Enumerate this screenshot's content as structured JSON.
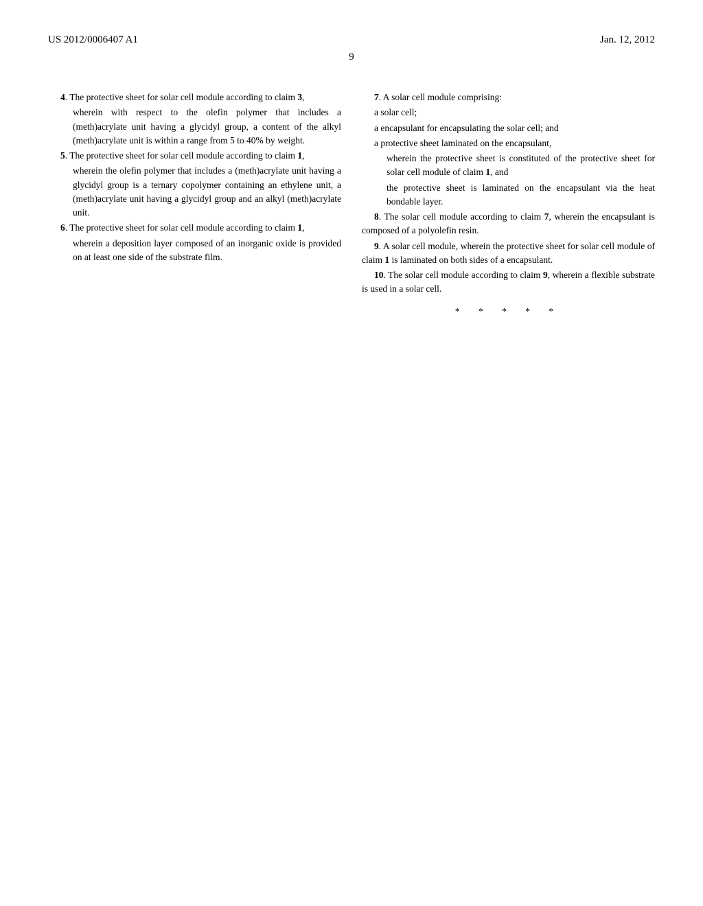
{
  "header": {
    "pub_number": "US 2012/0006407 A1",
    "date": "Jan. 12, 2012"
  },
  "page_number": "9",
  "claims": {
    "c4_lead": "4",
    "c4_text": ". The protective sheet for solar cell module according to claim ",
    "c4_ref": "3",
    "c4_tail": ",",
    "c4_body": "wherein with respect to the olefin polymer that includes a (meth)acrylate unit having a glycidyl group, a content of the alkyl (meth)acrylate unit is within a range from 5 to 40% by weight.",
    "c5_lead": "5",
    "c5_text": ". The protective sheet for solar cell module according to claim ",
    "c5_ref": "1",
    "c5_tail": ",",
    "c5_body": "wherein the olefin polymer that includes a (meth)acrylate unit having a glycidyl group is a ternary copolymer containing an ethylene unit, a (meth)acrylate unit having a glycidyl group and an alkyl (meth)acrylate unit.",
    "c6_lead": "6",
    "c6_text": ". The protective sheet for solar cell module according to claim ",
    "c6_ref": "1",
    "c6_tail": ",",
    "c6_body": "wherein a deposition layer composed of an inorganic oxide is provided on at least one side of the substrate film.",
    "c7_lead": "7",
    "c7_text": ". A solar cell module comprising:",
    "c7_line1": "a solar cell;",
    "c7_line2": "a encapsulant for encapsulating the solar cell; and",
    "c7_line3": "a protective sheet laminated on the encapsulant,",
    "c7_line4a": "wherein the protective sheet is constituted of the protective sheet for solar cell module of claim ",
    "c7_line4_ref": "1",
    "c7_line4b": ", and",
    "c7_line5": "the protective sheet is laminated on the encapsulant via the heat bondable layer.",
    "c8_lead": "8",
    "c8_text": ". The solar cell module according to claim ",
    "c8_ref": "7",
    "c8_tail": ", wherein the encapsulant is composed of a polyolefin resin.",
    "c9_lead": "9",
    "c9_text": ". A solar cell module, wherein the protective sheet for solar cell module of claim ",
    "c9_ref": "1",
    "c9_tail": " is laminated on both sides of a encapsulant.",
    "c10_lead": "10",
    "c10_text": ". The solar cell module according to claim ",
    "c10_ref": "9",
    "c10_tail": ", wherein a flexible substrate is used in a solar cell."
  },
  "asterisks": "* * * * *"
}
